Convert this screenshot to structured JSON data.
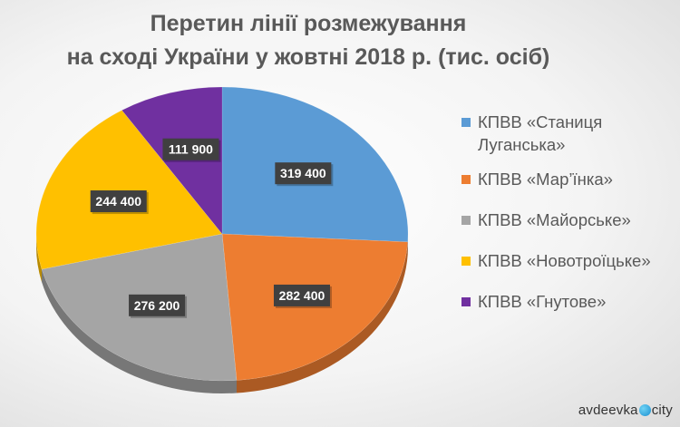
{
  "title": {
    "line1": "Перетин лінії розмежування",
    "line2": "на сході України у жовтні 2018 р. (тис. осіб)"
  },
  "chart_data": {
    "type": "pie",
    "title": "Перетин лінії розмежування на сході України у жовтні 2018 р. (тис. осіб)",
    "categories": [
      "КПВВ «Станиця Луганська»",
      "КПВВ «Мар’їнка»",
      "КПВВ «Майорське»",
      "КПВВ «Новотроїцьке»",
      "КПВВ «Гнутове»"
    ],
    "values": [
      319400,
      282400,
      276200,
      244400,
      111900
    ],
    "value_labels": [
      "319 400",
      "282 400",
      "276 200",
      "244 400",
      "111 900"
    ],
    "colors": [
      "#5b9bd5",
      "#ed7d31",
      "#a5a5a5",
      "#ffc000",
      "#7030a0"
    ],
    "legend_position": "right",
    "style": "3d-pie"
  },
  "legend": {
    "items": [
      {
        "lines": [
          "КПВВ «Станиця",
          "Луганська»"
        ],
        "color": "#5b9bd5"
      },
      {
        "lines": [
          "КПВВ «Мар’їнка»"
        ],
        "color": "#ed7d31"
      },
      {
        "lines": [
          "КПВВ «Майорське»"
        ],
        "color": "#a5a5a5"
      },
      {
        "lines": [
          "КПВВ «Новотроїцьке»"
        ],
        "color": "#ffc000"
      },
      {
        "lines": [
          "КПВВ «Гнутове»"
        ],
        "color": "#7030a0"
      }
    ]
  },
  "watermark": {
    "left": "avdeevka",
    "right": "city"
  }
}
